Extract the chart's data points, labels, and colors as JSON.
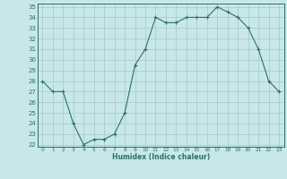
{
  "x": [
    0,
    1,
    2,
    3,
    4,
    5,
    6,
    7,
    8,
    9,
    10,
    11,
    12,
    13,
    14,
    15,
    16,
    17,
    18,
    19,
    20,
    21,
    22,
    23
  ],
  "y": [
    28,
    27,
    27,
    24,
    22,
    22.5,
    22.5,
    23,
    25,
    29.5,
    31,
    34,
    33.5,
    33.5,
    34,
    34,
    34,
    35,
    34.5,
    34,
    33,
    31,
    28,
    27
  ],
  "line_color": "#2d6e6e",
  "marker": "+",
  "marker_color": "#2d6e6e",
  "bg_color": "#c8e8e8",
  "grid_color": "#a8c8c8",
  "xlabel": "Humidex (Indice chaleur)",
  "ylim": [
    22,
    35
  ],
  "xlim": [
    -0.5,
    23.5
  ],
  "yticks": [
    22,
    23,
    24,
    25,
    26,
    27,
    28,
    29,
    30,
    31,
    32,
    33,
    34,
    35
  ],
  "xticks": [
    0,
    1,
    2,
    3,
    4,
    5,
    6,
    7,
    8,
    9,
    10,
    11,
    12,
    13,
    14,
    15,
    16,
    17,
    18,
    19,
    20,
    21,
    22,
    23
  ]
}
